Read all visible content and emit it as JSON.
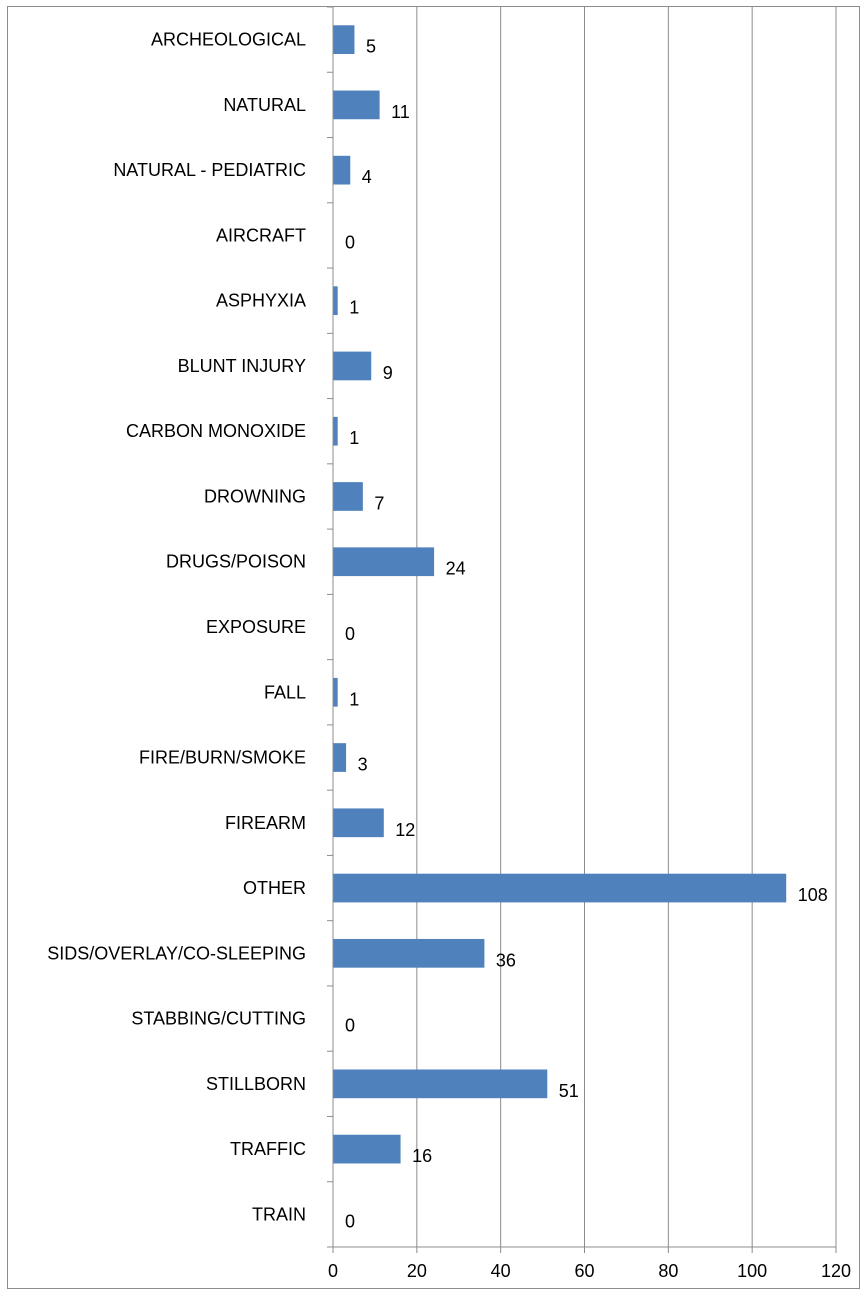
{
  "chart_data": {
    "type": "bar",
    "orientation": "horizontal",
    "title": "",
    "xlabel": "",
    "ylabel": "",
    "xlim": [
      0,
      120
    ],
    "x_ticks": [
      0,
      20,
      40,
      60,
      80,
      100,
      120
    ],
    "grid": "vertical",
    "legend": "none",
    "bar_color": "#4F81BD",
    "categories": [
      "ARCHEOLOGICAL",
      "NATURAL",
      "NATURAL - PEDIATRIC",
      "AIRCRAFT",
      "ASPHYXIA",
      "BLUNT INJURY",
      "CARBON MONOXIDE",
      "DROWNING",
      "DRUGS/POISON",
      "EXPOSURE",
      "FALL",
      "FIRE/BURN/SMOKE",
      "FIREARM",
      "OTHER",
      "SIDS/OVERLAY/CO-SLEEPING",
      "STABBING/CUTTING",
      "STILLBORN",
      "TRAFFIC",
      "TRAIN"
    ],
    "values": [
      5,
      11,
      4,
      0,
      1,
      9,
      1,
      7,
      24,
      0,
      1,
      3,
      12,
      108,
      36,
      0,
      51,
      16,
      0
    ]
  }
}
